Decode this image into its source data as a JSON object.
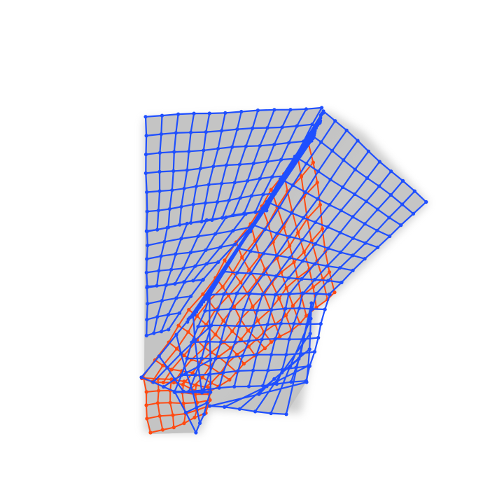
{
  "scene": {
    "background": "#ffffff",
    "cloth_color": "#c4c4c4",
    "shadow_color": "#a8a8a8",
    "front_mesh_color": "#1f4fff",
    "back_mesh_color": "#ff4a12",
    "layers": [
      {
        "name": "back-layer-mesh",
        "visible_color": "#ff4a12",
        "rows": 14,
        "cols": 7
      },
      {
        "name": "left-panel-mesh",
        "visible_color": "#1f4fff",
        "rows": 14,
        "cols": 11
      },
      {
        "name": "folded-flap-mesh",
        "visible_color": "#1f4fff",
        "rows": 17,
        "cols": 9
      }
    ]
  }
}
